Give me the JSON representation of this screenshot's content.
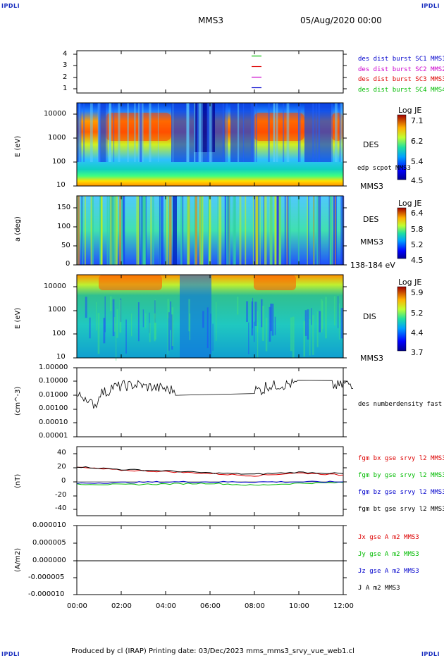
{
  "corners": {
    "tl": "IPDLI",
    "tr": "IPDLI",
    "bl": "IPDLI",
    "br": "IPDLI"
  },
  "header": {
    "spacecraft": "MMS3",
    "date": "05/Aug/2020 00:00"
  },
  "footer": {
    "text": "Produced by cl (IRAP)   Printing date: 03/Dec/2023   mms_mms3_srvy_vue_web1.cl"
  },
  "xaxis": {
    "ticks": [
      "00:00",
      "02:00",
      "04:00",
      "06:00",
      "08:00",
      "10:00",
      "12:00"
    ]
  },
  "panels": {
    "sc": {
      "yticks": [
        "4",
        "3",
        "2",
        "1"
      ],
      "legend": [
        {
          "label": "des dist burst SC1 MMS1",
          "color": "#0000cc"
        },
        {
          "label": "des dist burst SC2 MMS2",
          "color": "#cc00cc"
        },
        {
          "label": "des dist burst SC3 MMS3",
          "color": "#dd0000"
        },
        {
          "label": "des dist burst SC4 MMS4",
          "color": "#00bb00"
        }
      ]
    },
    "des_e": {
      "ylabel": "E (eV)",
      "yticks": [
        "10000",
        "1000",
        "100",
        "10"
      ],
      "label1": "DES",
      "label2": "edp scpot MMS3",
      "label3": "MMS3",
      "cb_title": "Log JE",
      "cb_ticks": [
        "7.1",
        "6.2",
        "5.4",
        "4.5"
      ]
    },
    "des_pa": {
      "ylabel": "a (deg)",
      "yticks": [
        "150",
        "100",
        "50",
        "0"
      ],
      "label1": "DES",
      "label2": "MMS3",
      "label3": "138-184 eV",
      "cb_title": "Log JE",
      "cb_ticks": [
        "6.4",
        "5.8",
        "5.2",
        "4.5"
      ]
    },
    "dis_e": {
      "ylabel": "E (eV)",
      "yticks": [
        "10000",
        "1000",
        "100",
        "10"
      ],
      "label1": "DIS",
      "label2": "MMS3",
      "cb_title": "Log JE",
      "cb_ticks": [
        "5.9",
        "5.2",
        "4.4",
        "3.7"
      ]
    },
    "dens": {
      "ylabel": "(cm^-3)",
      "yticks": [
        "1.00000",
        "0.10000",
        "0.01000",
        "0.00100",
        "0.00010",
        "0.00001"
      ],
      "label1": "des numberdensity fast M"
    },
    "fgm": {
      "ylabel": "(nT)",
      "yticks": [
        "40",
        "20",
        "0",
        "-20",
        "-40"
      ],
      "legend": [
        {
          "label": "fgm bx gse srvy l2 MMS3",
          "color": "#dd0000"
        },
        {
          "label": "fgm by gse srvy l2 MMS3",
          "color": "#00bb00"
        },
        {
          "label": "fgm bz gse srvy l2 MMS3",
          "color": "#0000cc"
        },
        {
          "label": "fgm bt gse srvy l2 MMS3",
          "color": "#000000"
        }
      ]
    },
    "cur": {
      "ylabel": "(A/m2)",
      "yticks": [
        "0.000010",
        "0.000005",
        "0.000000",
        "-0.000005",
        "-0.000010"
      ],
      "legend": [
        {
          "label": "Jx gse A m2 MMS3",
          "color": "#dd0000"
        },
        {
          "label": "Jy gse A m2 MMS3",
          "color": "#00bb00"
        },
        {
          "label": "Jz gse A m2 MMS3",
          "color": "#0000cc"
        },
        {
          "label": "J A m2 MMS3",
          "color": "#000000"
        }
      ]
    }
  },
  "chart_data": [
    {
      "type": "line",
      "title": "",
      "xlabel": "",
      "ylabel": "",
      "x_range": [
        "00:00",
        "12:00"
      ],
      "ylim": [
        0.5,
        4.5
      ],
      "series": [
        {
          "name": "des dist burst SC4 MMS4",
          "values": [
            4
          ]
        },
        {
          "name": "des dist burst SC3 MMS3",
          "values": [
            3
          ]
        },
        {
          "name": "des dist burst SC2 MMS2",
          "values": [
            2
          ]
        },
        {
          "name": "des dist burst SC1 MMS1",
          "values": [
            1
          ]
        }
      ]
    },
    {
      "type": "heatmap",
      "ylabel": "E (eV)",
      "yscale": "log",
      "ylim": [
        10,
        30000
      ],
      "colorbar": "Log JE",
      "clim": [
        4.5,
        7.1
      ]
    },
    {
      "type": "heatmap",
      "ylabel": "a (deg)",
      "ylim": [
        0,
        180
      ],
      "colorbar": "Log JE",
      "clim": [
        4.5,
        6.4
      ]
    },
    {
      "type": "heatmap",
      "ylabel": "E (eV)",
      "yscale": "log",
      "ylim": [
        10,
        30000
      ],
      "colorbar": "Log JE",
      "clim": [
        3.7,
        5.9
      ]
    },
    {
      "type": "line",
      "ylabel": "(cm^-3)",
      "yscale": "log",
      "ylim": [
        1e-05,
        1.0
      ],
      "series": [
        {
          "name": "des numberdensity fast M",
          "x": [
            "00:00",
            "00:30",
            "01:00",
            "01:30",
            "02:00",
            "02:30",
            "03:00",
            "03:30",
            "04:00",
            "07:30",
            "08:00",
            "08:30",
            "09:00",
            "09:30",
            "11:30",
            "12:00"
          ],
          "values": [
            0.01,
            0.003,
            0.02,
            0.05,
            0.06,
            0.07,
            0.05,
            0.04,
            0.03,
            0.04,
            0.03,
            0.06,
            0.07,
            0.08,
            0.06,
            0.08
          ]
        }
      ]
    },
    {
      "type": "line",
      "ylabel": "(nT)",
      "ylim": [
        -50,
        50
      ],
      "series": [
        {
          "name": "fgm bt gse srvy l2 MMS3",
          "x": [
            "00:00",
            "02:00",
            "04:00",
            "06:00",
            "08:00",
            "10:00",
            "12:00"
          ],
          "values": [
            22,
            18,
            16,
            13,
            11,
            14,
            12
          ]
        },
        {
          "name": "fgm bx gse srvy l2 MMS3",
          "x": [
            "00:00",
            "02:00",
            "04:00",
            "06:00",
            "08:00",
            "10:00",
            "12:00"
          ],
          "values": [
            21,
            17,
            15,
            12,
            9,
            13,
            10
          ]
        },
        {
          "name": "fgm by gse srvy l2 MMS3",
          "x": [
            "00:00",
            "02:00",
            "04:00",
            "06:00",
            "08:00",
            "10:00",
            "12:00"
          ],
          "values": [
            -3,
            -4,
            -3,
            -2,
            -5,
            -2,
            -1
          ]
        },
        {
          "name": "fgm bz gse srvy l2 MMS3",
          "x": [
            "00:00",
            "02:00",
            "04:00",
            "06:00",
            "08:00",
            "10:00",
            "12:00"
          ],
          "values": [
            -2,
            -1,
            0,
            0,
            0,
            0,
            0
          ]
        }
      ]
    },
    {
      "type": "line",
      "ylabel": "(A/m2)",
      "ylim": [
        -1e-05,
        1e-05
      ],
      "series": [
        {
          "name": "J A m2 MMS3",
          "x": [
            "00:00",
            "12:00"
          ],
          "values": [
            0,
            0
          ]
        }
      ]
    }
  ]
}
